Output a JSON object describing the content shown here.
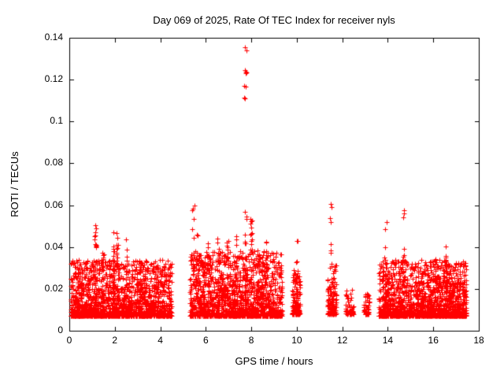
{
  "page": {
    "background": "#ffffff"
  },
  "chart_data": {
    "type": "scatter",
    "title": "Day 069 of 2025, Rate Of TEC Index for receiver nyls",
    "xlabel": "GPS time / hours",
    "ylabel": "ROTI / TECUs",
    "xlim": [
      0,
      18
    ],
    "ylim": [
      0,
      0.14
    ],
    "xticks": [
      0,
      2,
      4,
      6,
      8,
      10,
      12,
      14,
      16,
      18
    ],
    "yticks": [
      0,
      0.02,
      0.04,
      0.06,
      0.08,
      0.1,
      0.12,
      0.14
    ],
    "ytick_labels": [
      "0",
      "0.02",
      "0.04",
      "0.06",
      "0.08",
      "0.1",
      "0.12",
      "0.14"
    ],
    "grid": false,
    "legend": "none",
    "axis_color": "#000000",
    "marker": {
      "shape": "plus",
      "color": "#ff0000",
      "size": 6
    },
    "seed": 69,
    "bands": [
      {
        "x0": 0.05,
        "x1": 4.5,
        "n": 1700,
        "y0": 0.007,
        "y1": 0.034
      },
      {
        "x0": 5.3,
        "x1": 9.35,
        "n": 1500,
        "y0": 0.007,
        "y1": 0.038
      },
      {
        "x0": 9.8,
        "x1": 10.15,
        "n": 130,
        "y0": 0.008,
        "y1": 0.03
      },
      {
        "x0": 11.35,
        "x1": 11.75,
        "n": 130,
        "y0": 0.008,
        "y1": 0.032
      },
      {
        "x0": 12.15,
        "x1": 12.5,
        "n": 60,
        "y0": 0.008,
        "y1": 0.02
      },
      {
        "x0": 12.95,
        "x1": 13.2,
        "n": 45,
        "y0": 0.008,
        "y1": 0.018
      },
      {
        "x0": 13.6,
        "x1": 17.45,
        "n": 1600,
        "y0": 0.007,
        "y1": 0.034
      }
    ],
    "spikes": [
      {
        "x": 0.4,
        "top": 0.033,
        "n": 15
      },
      {
        "x": 1.15,
        "top": 0.052,
        "n": 14
      },
      {
        "x": 1.5,
        "top": 0.04,
        "n": 12
      },
      {
        "x": 1.95,
        "top": 0.05,
        "n": 22
      },
      {
        "x": 2.1,
        "top": 0.047,
        "n": 18
      },
      {
        "x": 2.5,
        "top": 0.044,
        "n": 14
      },
      {
        "x": 3.1,
        "top": 0.036,
        "n": 10
      },
      {
        "x": 4.15,
        "top": 0.037,
        "n": 10
      },
      {
        "x": 5.45,
        "top": 0.062,
        "n": 16
      },
      {
        "x": 5.6,
        "top": 0.05,
        "n": 12
      },
      {
        "x": 6.1,
        "top": 0.043,
        "n": 12
      },
      {
        "x": 6.55,
        "top": 0.047,
        "n": 14
      },
      {
        "x": 6.95,
        "top": 0.044,
        "n": 12
      },
      {
        "x": 7.35,
        "top": 0.05,
        "n": 12
      },
      {
        "x": 7.75,
        "top": 0.057,
        "n": 20
      },
      {
        "x": 8.0,
        "top": 0.055,
        "n": 16
      },
      {
        "x": 8.3,
        "top": 0.052,
        "n": 12
      },
      {
        "x": 8.65,
        "top": 0.045,
        "n": 10
      },
      {
        "x": 10.0,
        "top": 0.045,
        "n": 8
      },
      {
        "x": 11.5,
        "top": 0.065,
        "n": 10
      },
      {
        "x": 13.9,
        "top": 0.056,
        "n": 10
      },
      {
        "x": 14.7,
        "top": 0.065,
        "n": 10
      },
      {
        "x": 16.1,
        "top": 0.04,
        "n": 8
      },
      {
        "x": 16.55,
        "top": 0.042,
        "n": 10
      },
      {
        "x": 17.05,
        "top": 0.035,
        "n": 8
      }
    ],
    "outliers": [
      [
        7.73,
        0.1355
      ],
      [
        7.79,
        0.134
      ],
      [
        7.71,
        0.1245
      ],
      [
        7.75,
        0.124
      ],
      [
        7.8,
        0.1235
      ],
      [
        7.77,
        0.123
      ],
      [
        7.7,
        0.117
      ],
      [
        7.74,
        0.1165
      ],
      [
        7.69,
        0.1115
      ],
      [
        7.73,
        0.111
      ]
    ]
  }
}
